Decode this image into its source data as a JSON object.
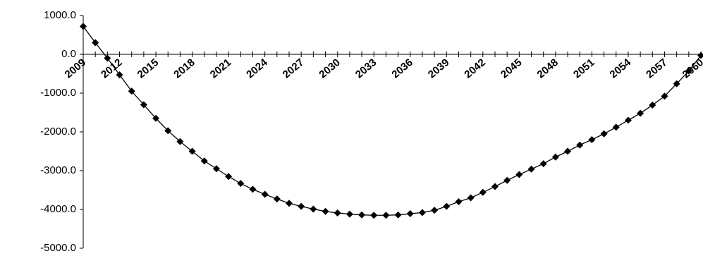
{
  "chart_data": {
    "type": "line",
    "categories": [
      "2009",
      null,
      null,
      "2012",
      null,
      null,
      "2015",
      null,
      null,
      "2018",
      null,
      null,
      "2021",
      null,
      null,
      "2024",
      null,
      null,
      "2027",
      null,
      null,
      "2030",
      null,
      null,
      "2033",
      null,
      null,
      "2036",
      null,
      null,
      "2039",
      null,
      null,
      "2042",
      null,
      null,
      "2045",
      null,
      null,
      "2048",
      null,
      null,
      "2051",
      null,
      null,
      "2054",
      null,
      null,
      "2057",
      null,
      null,
      "2060"
    ],
    "series": [
      {
        "name": null,
        "color": "#000000",
        "values": [
          720,
          300,
          -100,
          -530,
          -950,
          -1300,
          -1650,
          -1970,
          -2250,
          -2500,
          -2750,
          -2950,
          -3150,
          -3330,
          -3480,
          -3610,
          -3730,
          -3840,
          -3920,
          -3990,
          -4050,
          -4090,
          -4120,
          -4140,
          -4150,
          -4150,
          -4140,
          -4110,
          -4080,
          -4020,
          -3920,
          -3800,
          -3700,
          -3560,
          -3410,
          -3250,
          -3100,
          -2960,
          -2820,
          -2650,
          -2500,
          -2340,
          -2200,
          -2050,
          -1880,
          -1700,
          -1520,
          -1310,
          -1080,
          -760,
          -430,
          -30
        ]
      }
    ],
    "ylim": [
      -5000,
      1000
    ],
    "yticks": [
      {
        "value": -5000,
        "label": "-5000.0"
      },
      {
        "value": -4000,
        "label": "-4000.0"
      },
      {
        "value": -3000,
        "label": "-3000.0"
      },
      {
        "value": -2000,
        "label": "-2000.0"
      },
      {
        "value": -1000,
        "label": "-1000.0"
      },
      {
        "value": 0,
        "label": "0.0"
      },
      {
        "value": 1000,
        "label": "1000.0"
      }
    ],
    "grid": false
  }
}
